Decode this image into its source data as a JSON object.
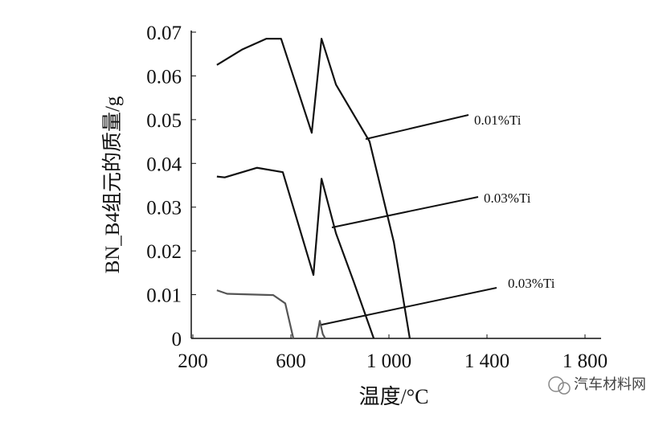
{
  "chart_data": {
    "type": "line",
    "xlabel": "温度/°C",
    "ylabel": "BN_B4组元的质量/g",
    "xlim": [
      200,
      1800
    ],
    "ylim": [
      0,
      0.07
    ],
    "xticks": [
      200,
      600,
      {
        "value": 1000,
        "label": "1 000"
      },
      {
        "value": 1400,
        "label": "1 400"
      },
      {
        "value": 1800,
        "label": "1 800"
      }
    ],
    "yticks": [
      0,
      0.01,
      0.02,
      0.03,
      0.04,
      0.05,
      0.06,
      0.07
    ],
    "series": [
      {
        "name": "0.01%Ti",
        "color": "#111111",
        "x": [
          298,
          400,
          500,
          560,
          685,
          725,
          784,
          921,
          1020,
          1085
        ],
        "values": [
          0.0625,
          0.066,
          0.0685,
          0.0685,
          0.047,
          0.0685,
          0.058,
          0.045,
          0.022,
          0
        ]
      },
      {
        "name": "0.03%Ti",
        "color": "#111111",
        "x": [
          298,
          330,
          462,
          567,
          692,
          725,
          784,
          856,
          938
        ],
        "values": [
          0.037,
          0.0368,
          0.039,
          0.038,
          0.0145,
          0.0365,
          0.024,
          0.013,
          0
        ]
      },
      {
        "name": "0.03%Ti",
        "color": "#555555",
        "x": [
          298,
          340,
          397,
          528,
          577,
          610,
          650,
          705,
          718,
          730,
          740
        ],
        "values": [
          0.011,
          0.0102,
          0.0101,
          0.0099,
          0.008,
          0,
          null,
          0,
          0.004,
          0.001,
          0
        ]
      }
    ],
    "watermark": "汽车材料网"
  }
}
